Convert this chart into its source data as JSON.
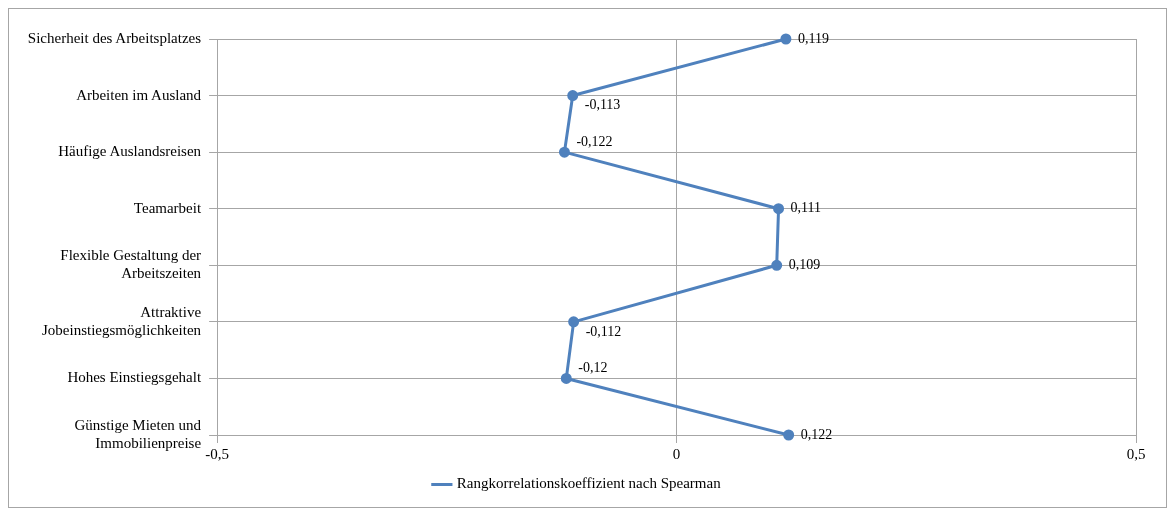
{
  "chart_data": {
    "type": "line",
    "orientation": "horizontal",
    "categories": [
      "Sicherheit des Arbeitsplatzes",
      "Arbeiten im Ausland",
      "Häufige Auslandsreisen",
      "Teamarbeit",
      "Flexible Gestaltung der Arbeitszeiten",
      "Attraktive Jobeinstiegsmöglichkeiten",
      "Hohes Einstiegsgehalt",
      "Günstige Mieten und Immobilienpreise"
    ],
    "series": [
      {
        "name": "Rangkorrelationskoeffizient nach Spearman",
        "color": "#4f81bd",
        "values": [
          0.119,
          -0.113,
          -0.122,
          0.111,
          0.109,
          -0.112,
          -0.12,
          0.122
        ],
        "value_labels": [
          "0,119",
          "-0,113",
          "-0,122",
          "0,111",
          "0,109",
          "-0,112",
          "-0,12",
          "0,122"
        ]
      }
    ],
    "xlim": [
      -0.5,
      0.5
    ],
    "xticks": [
      {
        "value": -0.5,
        "label": "-0,5"
      },
      {
        "value": 0,
        "label": "0"
      },
      {
        "value": 0.5,
        "label": "0,5"
      }
    ],
    "grid": true,
    "legend": "bottom",
    "marker": "circle",
    "line_style": "solid"
  }
}
